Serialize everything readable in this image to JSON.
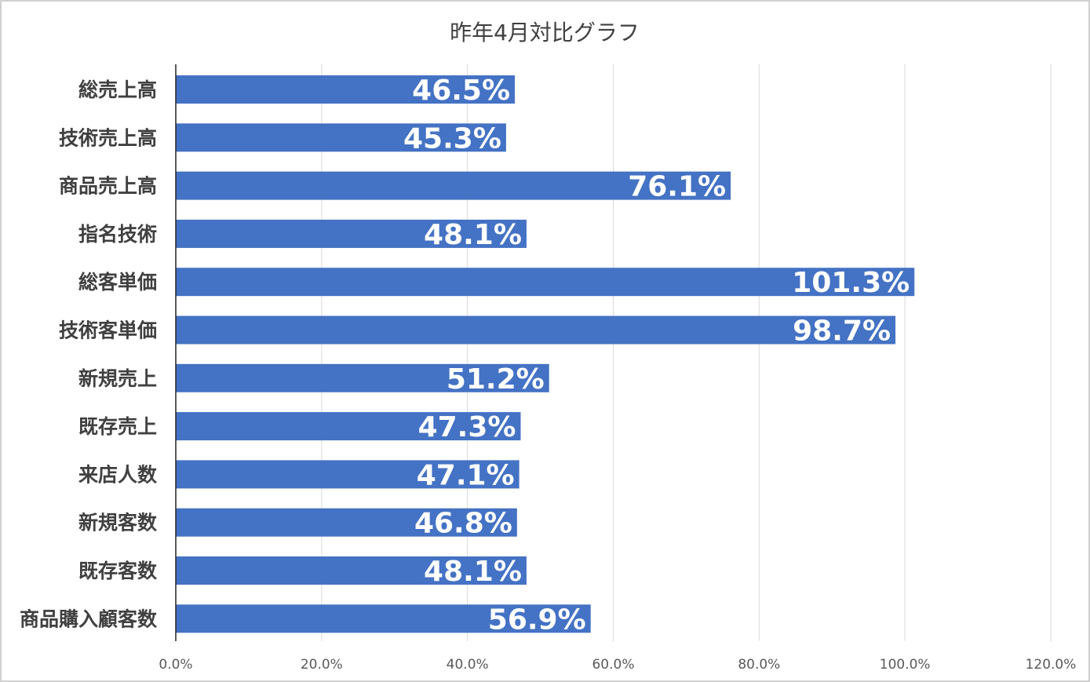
{
  "chart_data": {
    "type": "bar",
    "orientation": "horizontal",
    "title": "昨年4月対比グラフ",
    "categories": [
      "総売上高",
      "技術売上高",
      "商品売上高",
      "指名技術",
      "総客単価",
      "技術客単価",
      "新規売上",
      "既存売上",
      "来店人数",
      "新規客数",
      "既存客数",
      "商品購入顧客数"
    ],
    "values": [
      46.5,
      45.3,
      76.1,
      48.1,
      101.3,
      98.7,
      51.2,
      47.3,
      47.1,
      46.8,
      48.1,
      56.9
    ],
    "data_labels": [
      "46.5%",
      "45.3%",
      "76.1%",
      "48.1%",
      "101.3%",
      "98.7%",
      "51.2%",
      "47.3%",
      "47.1%",
      "46.8%",
      "48.1%",
      "56.9%"
    ],
    "x_ticks": [
      "0.0%",
      "20.0%",
      "40.0%",
      "60.0%",
      "80.0%",
      "100.0%",
      "120.0%"
    ],
    "xlim": [
      0,
      120
    ],
    "grid": "vertical",
    "legend": "none",
    "bar_color": "#4472c4"
  }
}
